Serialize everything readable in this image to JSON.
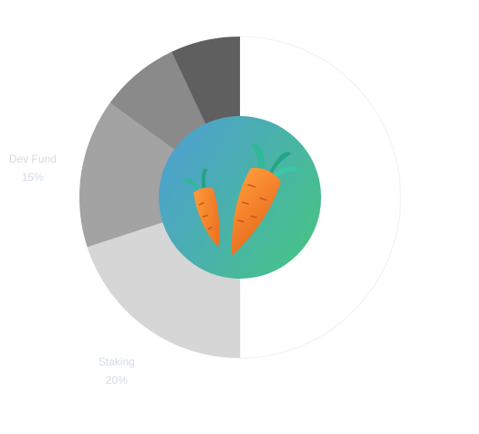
{
  "chart_data": {
    "type": "pie",
    "donut": true,
    "title": "",
    "slices": [
      {
        "label": "",
        "value": 50,
        "color": "#ffffff",
        "shown_label": "",
        "shown_value": ""
      },
      {
        "label": "Staking",
        "value": 20,
        "color": "#d6d6d6",
        "shown_label": "Staking",
        "shown_value": "20%"
      },
      {
        "label": "Dev Fund",
        "value": 15,
        "color": "#a3a3a3",
        "shown_label": "Dev Fund",
        "shown_value": "15%"
      },
      {
        "label": "",
        "value": 8,
        "color": "#8a8a8a",
        "shown_label": "",
        "shown_value": ""
      },
      {
        "label": "",
        "value": 7,
        "color": "#5f5f5f",
        "shown_label": "",
        "shown_value": ""
      }
    ],
    "center_icon": "carrots-icon",
    "center_gradient": [
      "#4e9dd6",
      "#47c08c"
    ]
  }
}
